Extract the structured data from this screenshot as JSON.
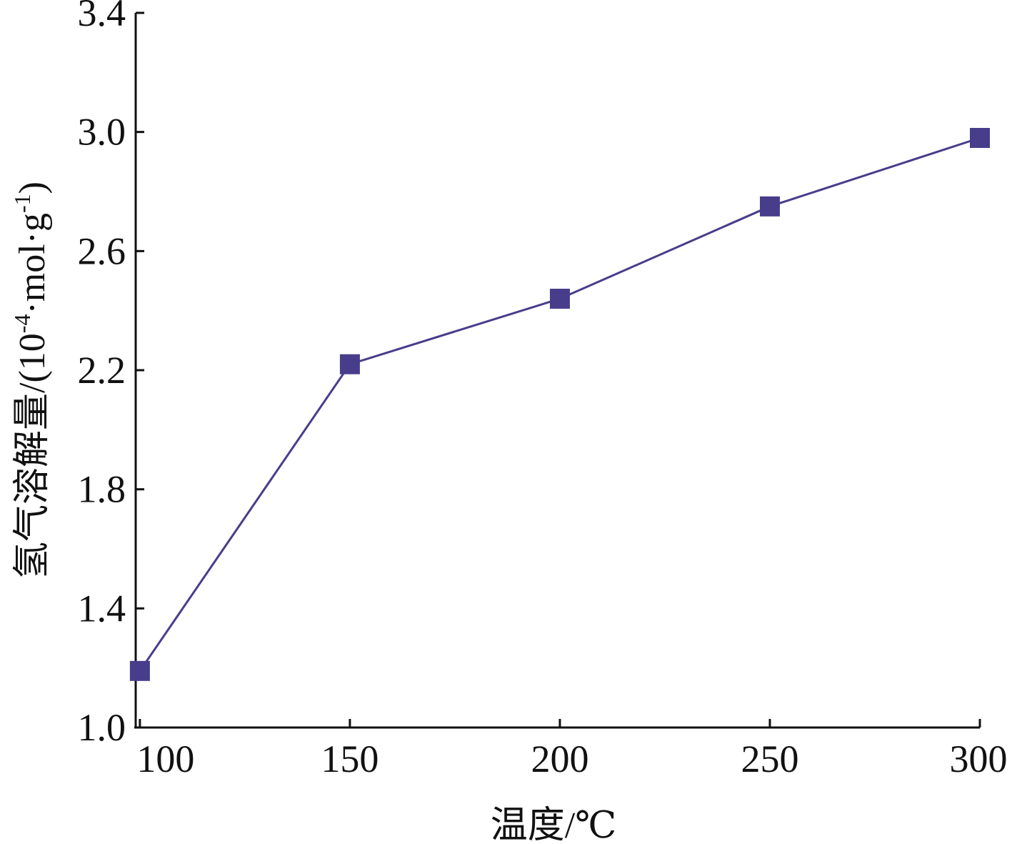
{
  "chart_data": {
    "type": "line",
    "x": [
      100,
      150,
      200,
      250,
      300
    ],
    "series": [
      {
        "values": [
          1.19,
          2.22,
          2.44,
          2.75,
          2.98
        ]
      }
    ],
    "xlabel": "温度/℃",
    "ylabel": "氢气溶解量/(10-4·mol·g-1)",
    "ylabel_parts": {
      "prefix": "氢气溶解量/(10",
      "sup1": "-4",
      "mid": "·mol·g",
      "sup2": "-1",
      "suffix": ")"
    },
    "xlim": [
      99,
      300
    ],
    "ylim": [
      1.0,
      3.4
    ],
    "xticks": [
      "100",
      "150",
      "200",
      "250",
      "300"
    ],
    "yticks": [
      "1.0",
      "1.4",
      "1.8",
      "2.2",
      "2.6",
      "3.0",
      "3.4"
    ],
    "marker": "square",
    "color": "#483d8b",
    "grid": false
  }
}
